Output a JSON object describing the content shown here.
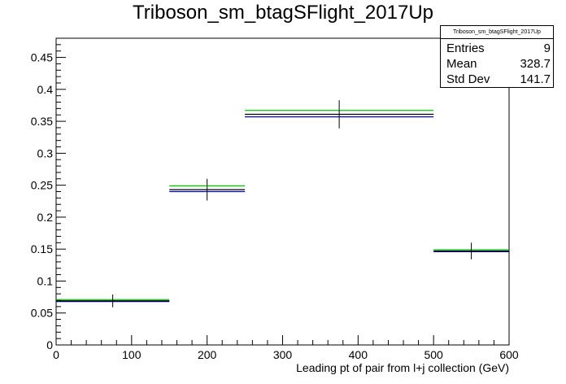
{
  "chart_data": {
    "type": "histogram",
    "title": "Triboson_sm_btagSFlight_2017Up",
    "xlabel": "Leading pt of pair from l+j collection (GeV)",
    "ylabel": "",
    "xlim": [
      0,
      600
    ],
    "ylim": [
      0,
      0.48
    ],
    "x_ticks": [
      0,
      100,
      200,
      300,
      400,
      500,
      600
    ],
    "y_ticks": [
      0,
      0.05,
      0.1,
      0.15,
      0.2,
      0.25,
      0.3,
      0.35,
      0.4,
      0.45
    ],
    "bins": [
      {
        "x_low": 0,
        "x_high": 150,
        "x_center": 75
      },
      {
        "x_low": 150,
        "x_high": 250,
        "x_center": 200
      },
      {
        "x_low": 250,
        "x_high": 500,
        "x_center": 375
      },
      {
        "x_low": 500,
        "x_high": 600,
        "x_center": 550
      }
    ],
    "series": [
      {
        "name": "",
        "color": "#000000",
        "values": [
          0.069,
          0.243,
          0.361,
          0.147
        ],
        "errors": [
          0.01,
          0.017,
          0.022,
          0.013
        ]
      },
      {
        "name": "",
        "color": "#00cc00",
        "values": [
          0.071,
          0.249,
          0.367,
          0.149
        ]
      },
      {
        "name": "",
        "color": "#0000cc",
        "values": [
          0.068,
          0.24,
          0.357,
          0.146
        ]
      }
    ],
    "grid": false
  },
  "stats_box": {
    "title": "Triboson_sm_btagSFlight_2017Up",
    "entries_label": "Entries",
    "entries_value": "9",
    "mean_label": "Mean",
    "mean_value": "328.7",
    "stddev_label": "Std Dev",
    "stddev_value": "141.7"
  }
}
